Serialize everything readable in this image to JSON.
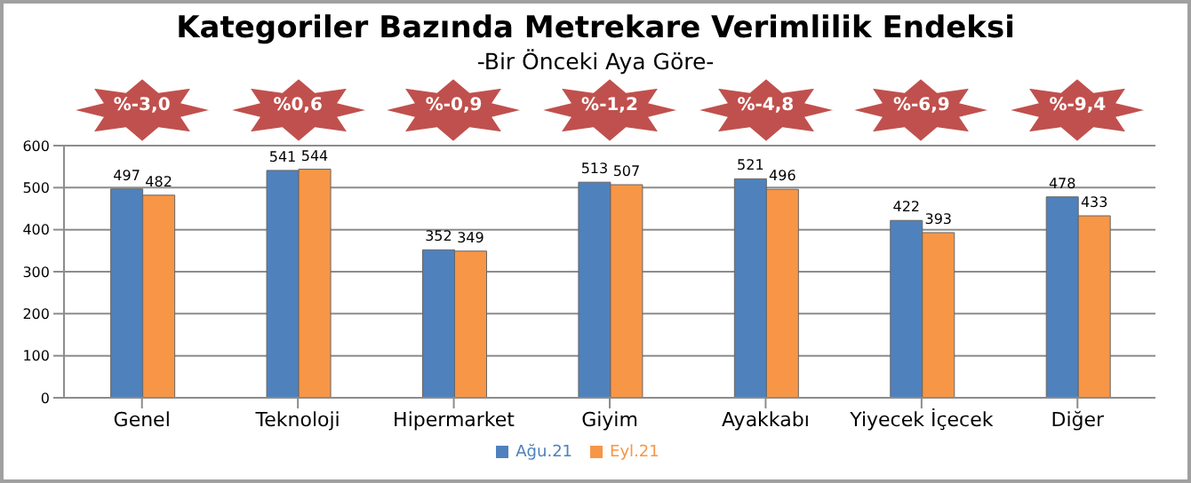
{
  "chart_data": {
    "type": "bar",
    "title": "Kategoriler Bazında Metrekare Verimlilik Endeksi",
    "subtitle": "-Bir Önceki Aya Göre-",
    "categories": [
      "Genel",
      "Teknoloji",
      "Hipermarket",
      "Giyim",
      "Ayakkabı",
      "Yiyecek İçecek",
      "Diğer"
    ],
    "series": [
      {
        "name": "Ağu.21",
        "color": "#4f81bd",
        "values": [
          497,
          541,
          352,
          513,
          521,
          422,
          478
        ]
      },
      {
        "name": "Eyl.21",
        "color": "#f79646",
        "values": [
          482,
          544,
          349,
          507,
          496,
          393,
          433
        ]
      }
    ],
    "ylim": [
      0,
      600
    ],
    "yticks": [
      0,
      100,
      200,
      300,
      400,
      500,
      600
    ],
    "grid": "y",
    "legend": "bottom",
    "data_labels": true,
    "annotations": [
      "%-3,0",
      "%0,6",
      "%-0,9",
      "%-1,2",
      "%-4,8",
      "%-6,9",
      "%-9,4"
    ]
  }
}
